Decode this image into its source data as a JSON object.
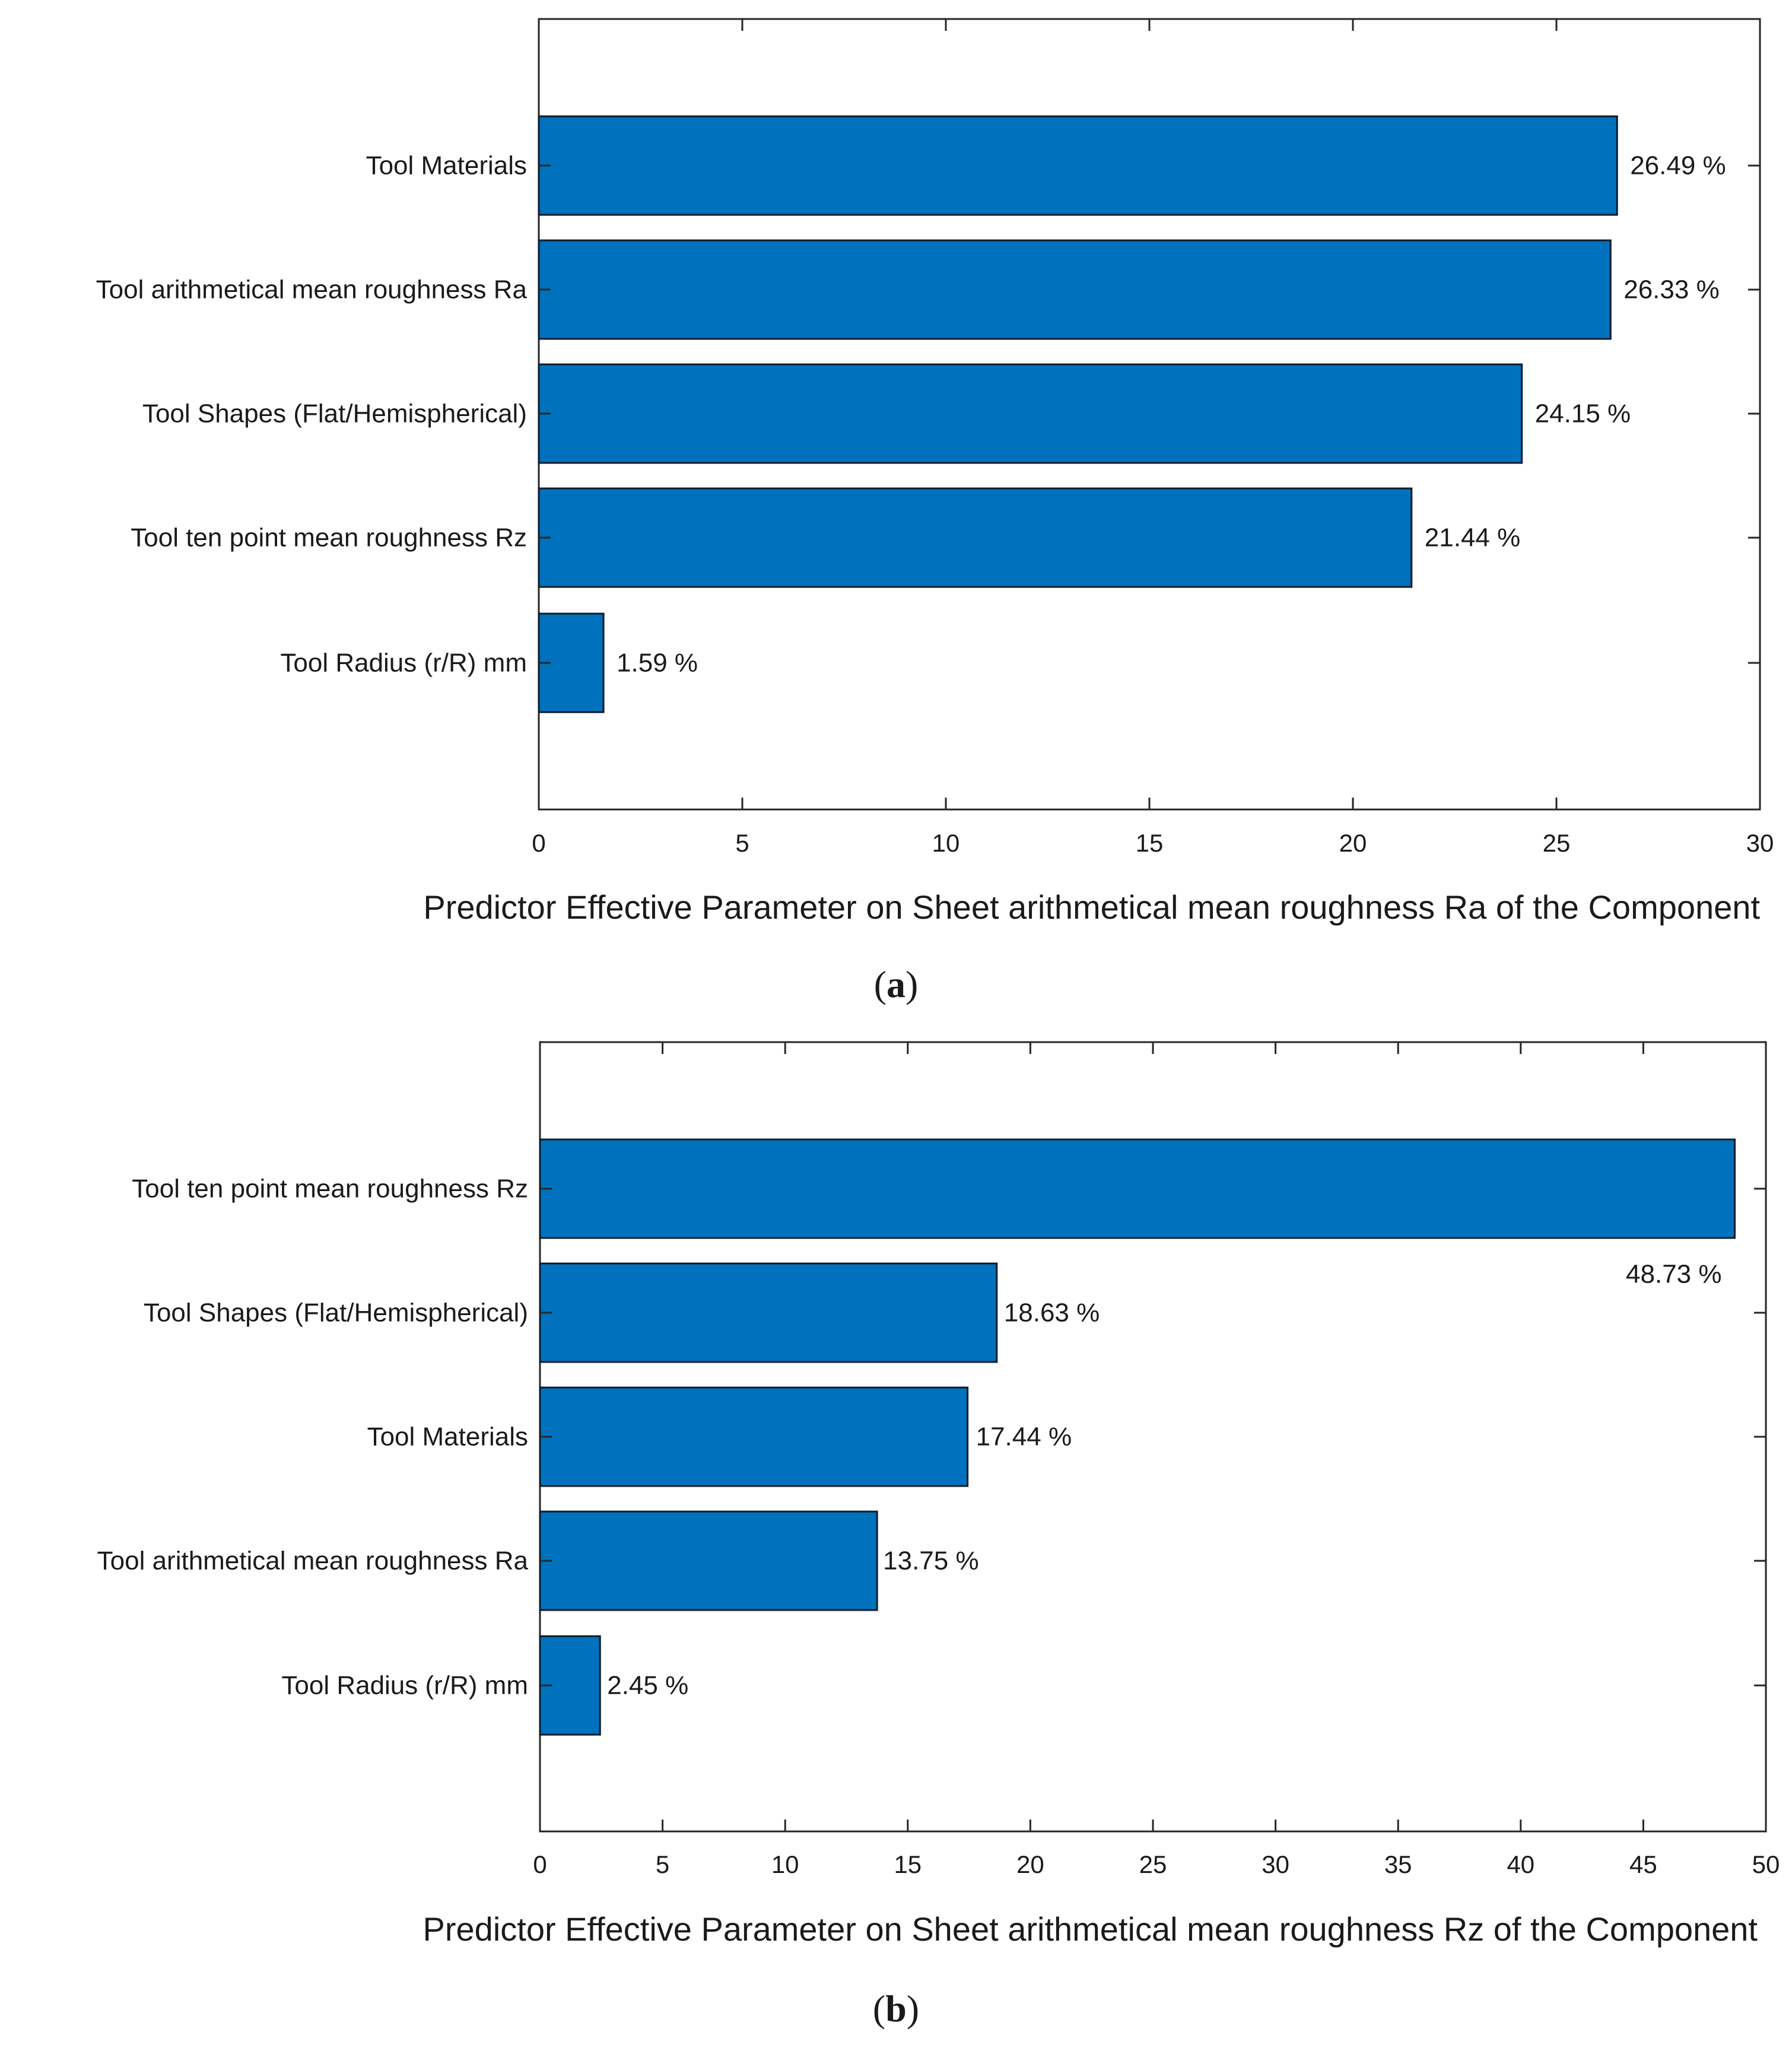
{
  "chart_data": [
    {
      "type": "bar",
      "orientation": "horizontal",
      "panel_label": "(a)",
      "panel_letter": "a",
      "categories": [
        "Tool Materials",
        "Tool arithmetical mean roughness Ra",
        "Tool Shapes (Flat/Hemispherical)",
        "Tool ten point mean roughness Rz",
        "Tool Radius (r/R) mm"
      ],
      "values": [
        26.49,
        26.33,
        24.15,
        21.44,
        1.59
      ],
      "data_labels": [
        "26.49 %",
        "26.33 %",
        "24.15 %",
        "21.44 %",
        "1.59 %"
      ],
      "xlabel": "Predictor Effective Parameter on Sheet arithmetical mean roughness Ra of the Component",
      "ylabel": "",
      "xlim": [
        0,
        30
      ],
      "xticks": [
        0,
        5,
        10,
        15,
        20,
        25,
        30
      ],
      "bar_color": "#0072BD",
      "grid": false
    },
    {
      "type": "bar",
      "orientation": "horizontal",
      "panel_label": "(b)",
      "panel_letter": "b",
      "categories": [
        "Tool ten point mean roughness Rz",
        "Tool Shapes (Flat/Hemispherical)",
        "Tool Materials",
        "Tool arithmetical mean roughness Ra",
        "Tool Radius (r/R) mm"
      ],
      "values": [
        48.73,
        18.63,
        17.44,
        13.75,
        2.45
      ],
      "data_labels": [
        "48.73 %",
        "18.63 %",
        "17.44 %",
        "13.75 %",
        "2.45 %"
      ],
      "xlabel": "Predictor Effective Parameter on Sheet arithmetical mean roughness Rz of the Component",
      "ylabel": "",
      "xlim": [
        0,
        50
      ],
      "xticks": [
        0,
        5,
        10,
        15,
        20,
        25,
        30,
        35,
        40,
        45,
        50
      ],
      "bar_color": "#0072BD",
      "grid": false
    }
  ]
}
